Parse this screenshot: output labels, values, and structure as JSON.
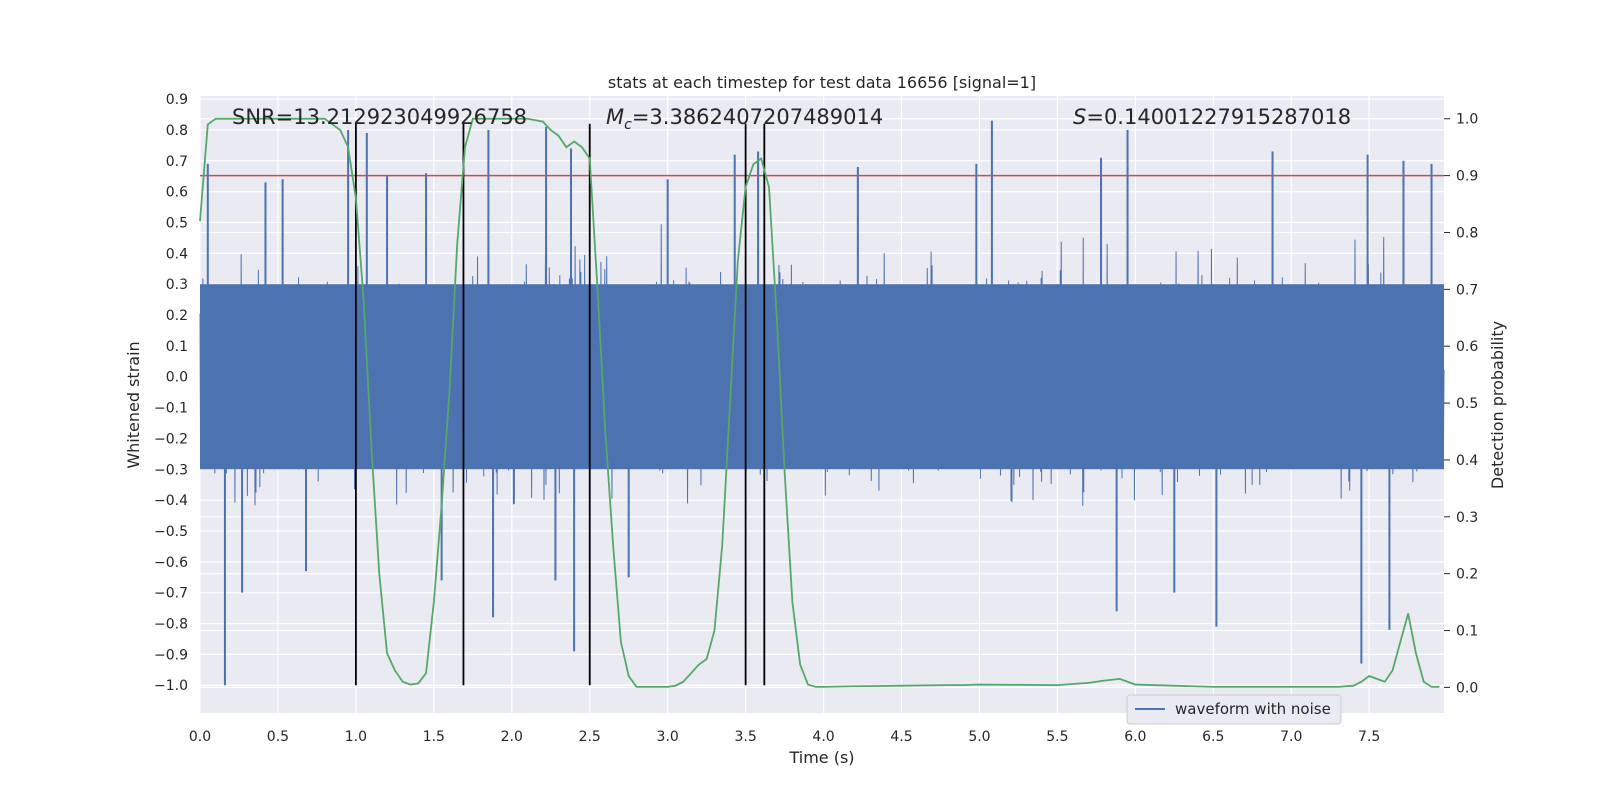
{
  "chart_data": {
    "type": "line",
    "title": "stats at each timestep for test data 16656 [signal=1]",
    "xlabel": "Time (s)",
    "ylabel": "Whitened strain",
    "ylabel_right": "Detection probability",
    "xlim": [
      0.0,
      7.98
    ],
    "ylim": [
      -1.09,
      0.91
    ],
    "ylim_right": [
      -0.045,
      1.04
    ],
    "x_ticks": [
      0.0,
      0.5,
      1.0,
      1.5,
      2.0,
      2.5,
      3.0,
      3.5,
      4.0,
      4.5,
      5.0,
      5.5,
      6.0,
      6.5,
      7.0,
      7.5
    ],
    "x_tick_labels": [
      "0.0",
      "0.5",
      "1.0",
      "1.5",
      "2.0",
      "2.5",
      "3.0",
      "3.5",
      "4.0",
      "4.5",
      "5.0",
      "5.5",
      "6.0",
      "6.5",
      "7.0",
      "7.5"
    ],
    "y_ticks": [
      0.9,
      0.8,
      0.7,
      0.6,
      0.5,
      0.4,
      0.3,
      0.2,
      0.1,
      0.0,
      -0.1,
      -0.2,
      -0.3,
      -0.4,
      -0.5,
      -0.6,
      -0.7,
      -0.8,
      -0.9,
      -1.0
    ],
    "y_tick_labels": [
      "0.9",
      "0.8",
      "0.7",
      "0.6",
      "0.5",
      "0.4",
      "0.3",
      "0.2",
      "0.1",
      "0.0",
      "−0.1",
      "−0.2",
      "−0.3",
      "−0.4",
      "−0.5",
      "−0.6",
      "−0.7",
      "−0.8",
      "−0.9",
      "−1.0"
    ],
    "y_right_ticks": [
      1.0,
      0.9,
      0.8,
      0.7,
      0.6,
      0.5,
      0.4,
      0.3,
      0.2,
      0.1,
      0.0
    ],
    "y_right_tick_labels": [
      "1.0",
      "0.9",
      "0.8",
      "0.7",
      "0.6",
      "0.5",
      "0.4",
      "0.3",
      "0.2",
      "0.1",
      "0.0"
    ],
    "legend": {
      "entries": [
        "waveform with noise"
      ],
      "placement": "bottom-right"
    },
    "annotations": {
      "snr": "SNR=13.212923049926758",
      "mc_symbol": "M",
      "mc_subscript": "c",
      "mc_value": "=3.3862407207489014",
      "s_symbol": "S",
      "s_value": "=0.14001227915287018"
    },
    "threshold": {
      "value": 0.9,
      "axis": "right",
      "color": "#c44e52"
    },
    "vertical_lines": [
      1.0,
      1.69,
      2.5,
      3.5,
      3.62
    ],
    "vertical_line_range": [
      -1.0,
      0.82
    ],
    "waveform": {
      "name": "waveform with noise",
      "color": "#4c72b0",
      "core_band": [
        -0.3,
        0.3
      ],
      "typical_envelope": [
        -0.42,
        0.5
      ],
      "spikes": [
        {
          "t": 0.05,
          "y": 0.69
        },
        {
          "t": 0.16,
          "y": -1.0
        },
        {
          "t": 0.27,
          "y": -0.7
        },
        {
          "t": 0.42,
          "y": 0.63
        },
        {
          "t": 0.53,
          "y": 0.64
        },
        {
          "t": 0.68,
          "y": -0.63
        },
        {
          "t": 0.95,
          "y": 0.8
        },
        {
          "t": 1.07,
          "y": 0.79
        },
        {
          "t": 1.2,
          "y": 0.65
        },
        {
          "t": 1.45,
          "y": 0.66
        },
        {
          "t": 1.55,
          "y": -0.66
        },
        {
          "t": 1.85,
          "y": 0.8
        },
        {
          "t": 1.88,
          "y": -0.78
        },
        {
          "t": 2.22,
          "y": 0.81
        },
        {
          "t": 2.28,
          "y": -0.66
        },
        {
          "t": 2.4,
          "y": -0.89
        },
        {
          "t": 2.38,
          "y": 0.74
        },
        {
          "t": 2.75,
          "y": -0.65
        },
        {
          "t": 3.0,
          "y": 0.64
        },
        {
          "t": 3.43,
          "y": 0.72
        },
        {
          "t": 3.58,
          "y": 0.73
        },
        {
          "t": 4.22,
          "y": 0.68
        },
        {
          "t": 4.98,
          "y": 0.69
        },
        {
          "t": 5.08,
          "y": 0.83
        },
        {
          "t": 5.78,
          "y": 0.71
        },
        {
          "t": 5.88,
          "y": -0.76
        },
        {
          "t": 5.95,
          "y": 0.8
        },
        {
          "t": 6.25,
          "y": -0.7
        },
        {
          "t": 6.52,
          "y": -0.81
        },
        {
          "t": 6.88,
          "y": 0.73
        },
        {
          "t": 7.45,
          "y": -0.93
        },
        {
          "t": 7.49,
          "y": 0.72
        },
        {
          "t": 7.63,
          "y": -0.82
        },
        {
          "t": 7.72,
          "y": 0.7
        },
        {
          "t": 7.9,
          "y": 0.69
        }
      ]
    },
    "detection_probability": {
      "name": "detection probability",
      "color": "#55a868",
      "x": [
        0.0,
        0.05,
        0.1,
        0.15,
        0.2,
        0.3,
        0.4,
        0.5,
        0.6,
        0.7,
        0.8,
        0.85,
        0.9,
        0.95,
        1.0,
        1.05,
        1.1,
        1.15,
        1.2,
        1.25,
        1.3,
        1.35,
        1.4,
        1.45,
        1.5,
        1.55,
        1.6,
        1.65,
        1.7,
        1.75,
        1.8,
        1.9,
        2.0,
        2.1,
        2.2,
        2.25,
        2.3,
        2.35,
        2.4,
        2.45,
        2.5,
        2.55,
        2.6,
        2.65,
        2.7,
        2.75,
        2.8,
        2.9,
        3.0,
        3.05,
        3.1,
        3.15,
        3.2,
        3.25,
        3.3,
        3.35,
        3.4,
        3.45,
        3.5,
        3.55,
        3.6,
        3.65,
        3.7,
        3.75,
        3.8,
        3.85,
        3.9,
        3.95,
        4.0,
        4.2,
        4.5,
        4.8,
        4.9,
        5.0,
        5.5,
        5.7,
        5.8,
        5.9,
        5.95,
        6.0,
        6.5,
        7.0,
        7.3,
        7.4,
        7.45,
        7.5,
        7.55,
        7.6,
        7.65,
        7.7,
        7.75,
        7.8,
        7.85,
        7.9,
        7.95
      ],
      "y": [
        0.82,
        0.99,
        1.0,
        1.0,
        1.0,
        1.0,
        1.0,
        1.0,
        1.0,
        1.0,
        1.0,
        0.99,
        0.98,
        0.95,
        0.86,
        0.68,
        0.42,
        0.2,
        0.06,
        0.03,
        0.01,
        0.005,
        0.007,
        0.025,
        0.15,
        0.32,
        0.52,
        0.78,
        0.95,
        1.0,
        1.0,
        1.0,
        1.0,
        1.0,
        0.995,
        0.98,
        0.97,
        0.95,
        0.96,
        0.95,
        0.93,
        0.7,
        0.45,
        0.25,
        0.08,
        0.02,
        0.001,
        0.001,
        0.001,
        0.003,
        0.01,
        0.025,
        0.04,
        0.05,
        0.1,
        0.25,
        0.5,
        0.75,
        0.88,
        0.92,
        0.93,
        0.88,
        0.65,
        0.38,
        0.15,
        0.04,
        0.005,
        0.001,
        0.001,
        0.002,
        0.003,
        0.004,
        0.004,
        0.005,
        0.004,
        0.008,
        0.012,
        0.015,
        0.01,
        0.005,
        0.001,
        0.001,
        0.001,
        0.003,
        0.01,
        0.02,
        0.015,
        0.01,
        0.03,
        0.08,
        0.13,
        0.06,
        0.01,
        0.001,
        0.001
      ]
    }
  }
}
